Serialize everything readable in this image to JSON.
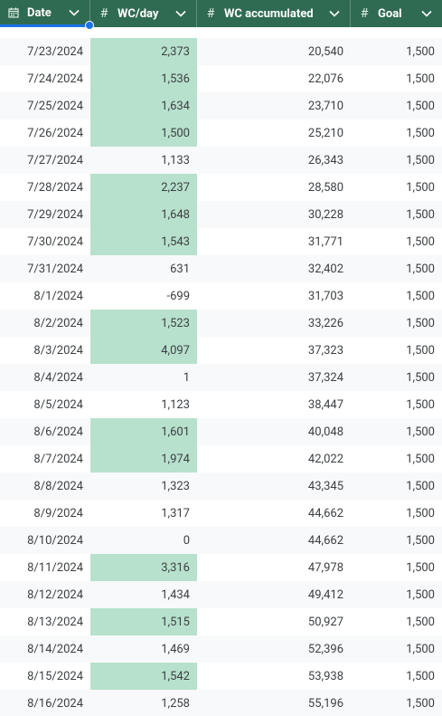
{
  "columns": [
    {
      "label": "Date",
      "icon": "calendar-icon"
    },
    {
      "label": "WC/day",
      "icon": "hash-icon"
    },
    {
      "label": "WC accumulated",
      "icon": "hash-icon"
    },
    {
      "label": "Goal",
      "icon": "hash-icon"
    }
  ],
  "rows": [
    {
      "date": "7/23/2024",
      "wc": "2,373",
      "acc": "20,540",
      "goal": "1,500",
      "met": true
    },
    {
      "date": "7/24/2024",
      "wc": "1,536",
      "acc": "22,076",
      "goal": "1,500",
      "met": true
    },
    {
      "date": "7/25/2024",
      "wc": "1,634",
      "acc": "23,710",
      "goal": "1,500",
      "met": true
    },
    {
      "date": "7/26/2024",
      "wc": "1,500",
      "acc": "25,210",
      "goal": "1,500",
      "met": true
    },
    {
      "date": "7/27/2024",
      "wc": "1,133",
      "acc": "26,343",
      "goal": "1,500",
      "met": false
    },
    {
      "date": "7/28/2024",
      "wc": "2,237",
      "acc": "28,580",
      "goal": "1,500",
      "met": true
    },
    {
      "date": "7/29/2024",
      "wc": "1,648",
      "acc": "30,228",
      "goal": "1,500",
      "met": true
    },
    {
      "date": "7/30/2024",
      "wc": "1,543",
      "acc": "31,771",
      "goal": "1,500",
      "met": true
    },
    {
      "date": "7/31/2024",
      "wc": "631",
      "acc": "32,402",
      "goal": "1,500",
      "met": false
    },
    {
      "date": "8/1/2024",
      "wc": "-699",
      "acc": "31,703",
      "goal": "1,500",
      "met": false
    },
    {
      "date": "8/2/2024",
      "wc": "1,523",
      "acc": "33,226",
      "goal": "1,500",
      "met": true
    },
    {
      "date": "8/3/2024",
      "wc": "4,097",
      "acc": "37,323",
      "goal": "1,500",
      "met": true
    },
    {
      "date": "8/4/2024",
      "wc": "1",
      "acc": "37,324",
      "goal": "1,500",
      "met": false
    },
    {
      "date": "8/5/2024",
      "wc": "1,123",
      "acc": "38,447",
      "goal": "1,500",
      "met": false
    },
    {
      "date": "8/6/2024",
      "wc": "1,601",
      "acc": "40,048",
      "goal": "1,500",
      "met": true
    },
    {
      "date": "8/7/2024",
      "wc": "1,974",
      "acc": "42,022",
      "goal": "1,500",
      "met": true
    },
    {
      "date": "8/8/2024",
      "wc": "1,323",
      "acc": "43,345",
      "goal": "1,500",
      "met": false
    },
    {
      "date": "8/9/2024",
      "wc": "1,317",
      "acc": "44,662",
      "goal": "1,500",
      "met": false
    },
    {
      "date": "8/10/2024",
      "wc": "0",
      "acc": "44,662",
      "goal": "1,500",
      "met": false
    },
    {
      "date": "8/11/2024",
      "wc": "3,316",
      "acc": "47,978",
      "goal": "1,500",
      "met": true
    },
    {
      "date": "8/12/2024",
      "wc": "1,434",
      "acc": "49,412",
      "goal": "1,500",
      "met": false
    },
    {
      "date": "8/13/2024",
      "wc": "1,515",
      "acc": "50,927",
      "goal": "1,500",
      "met": true
    },
    {
      "date": "8/14/2024",
      "wc": "1,469",
      "acc": "52,396",
      "goal": "1,500",
      "met": false
    },
    {
      "date": "8/15/2024",
      "wc": "1,542",
      "acc": "53,938",
      "goal": "1,500",
      "met": true
    },
    {
      "date": "8/16/2024",
      "wc": "1,258",
      "acc": "55,196",
      "goal": "1,500",
      "met": false
    }
  ],
  "colors": {
    "header_bg": "#2f6b52",
    "highlight": "#b7e1cd",
    "selection": "#1a73e8",
    "alt_row": "#f8f9fa"
  }
}
